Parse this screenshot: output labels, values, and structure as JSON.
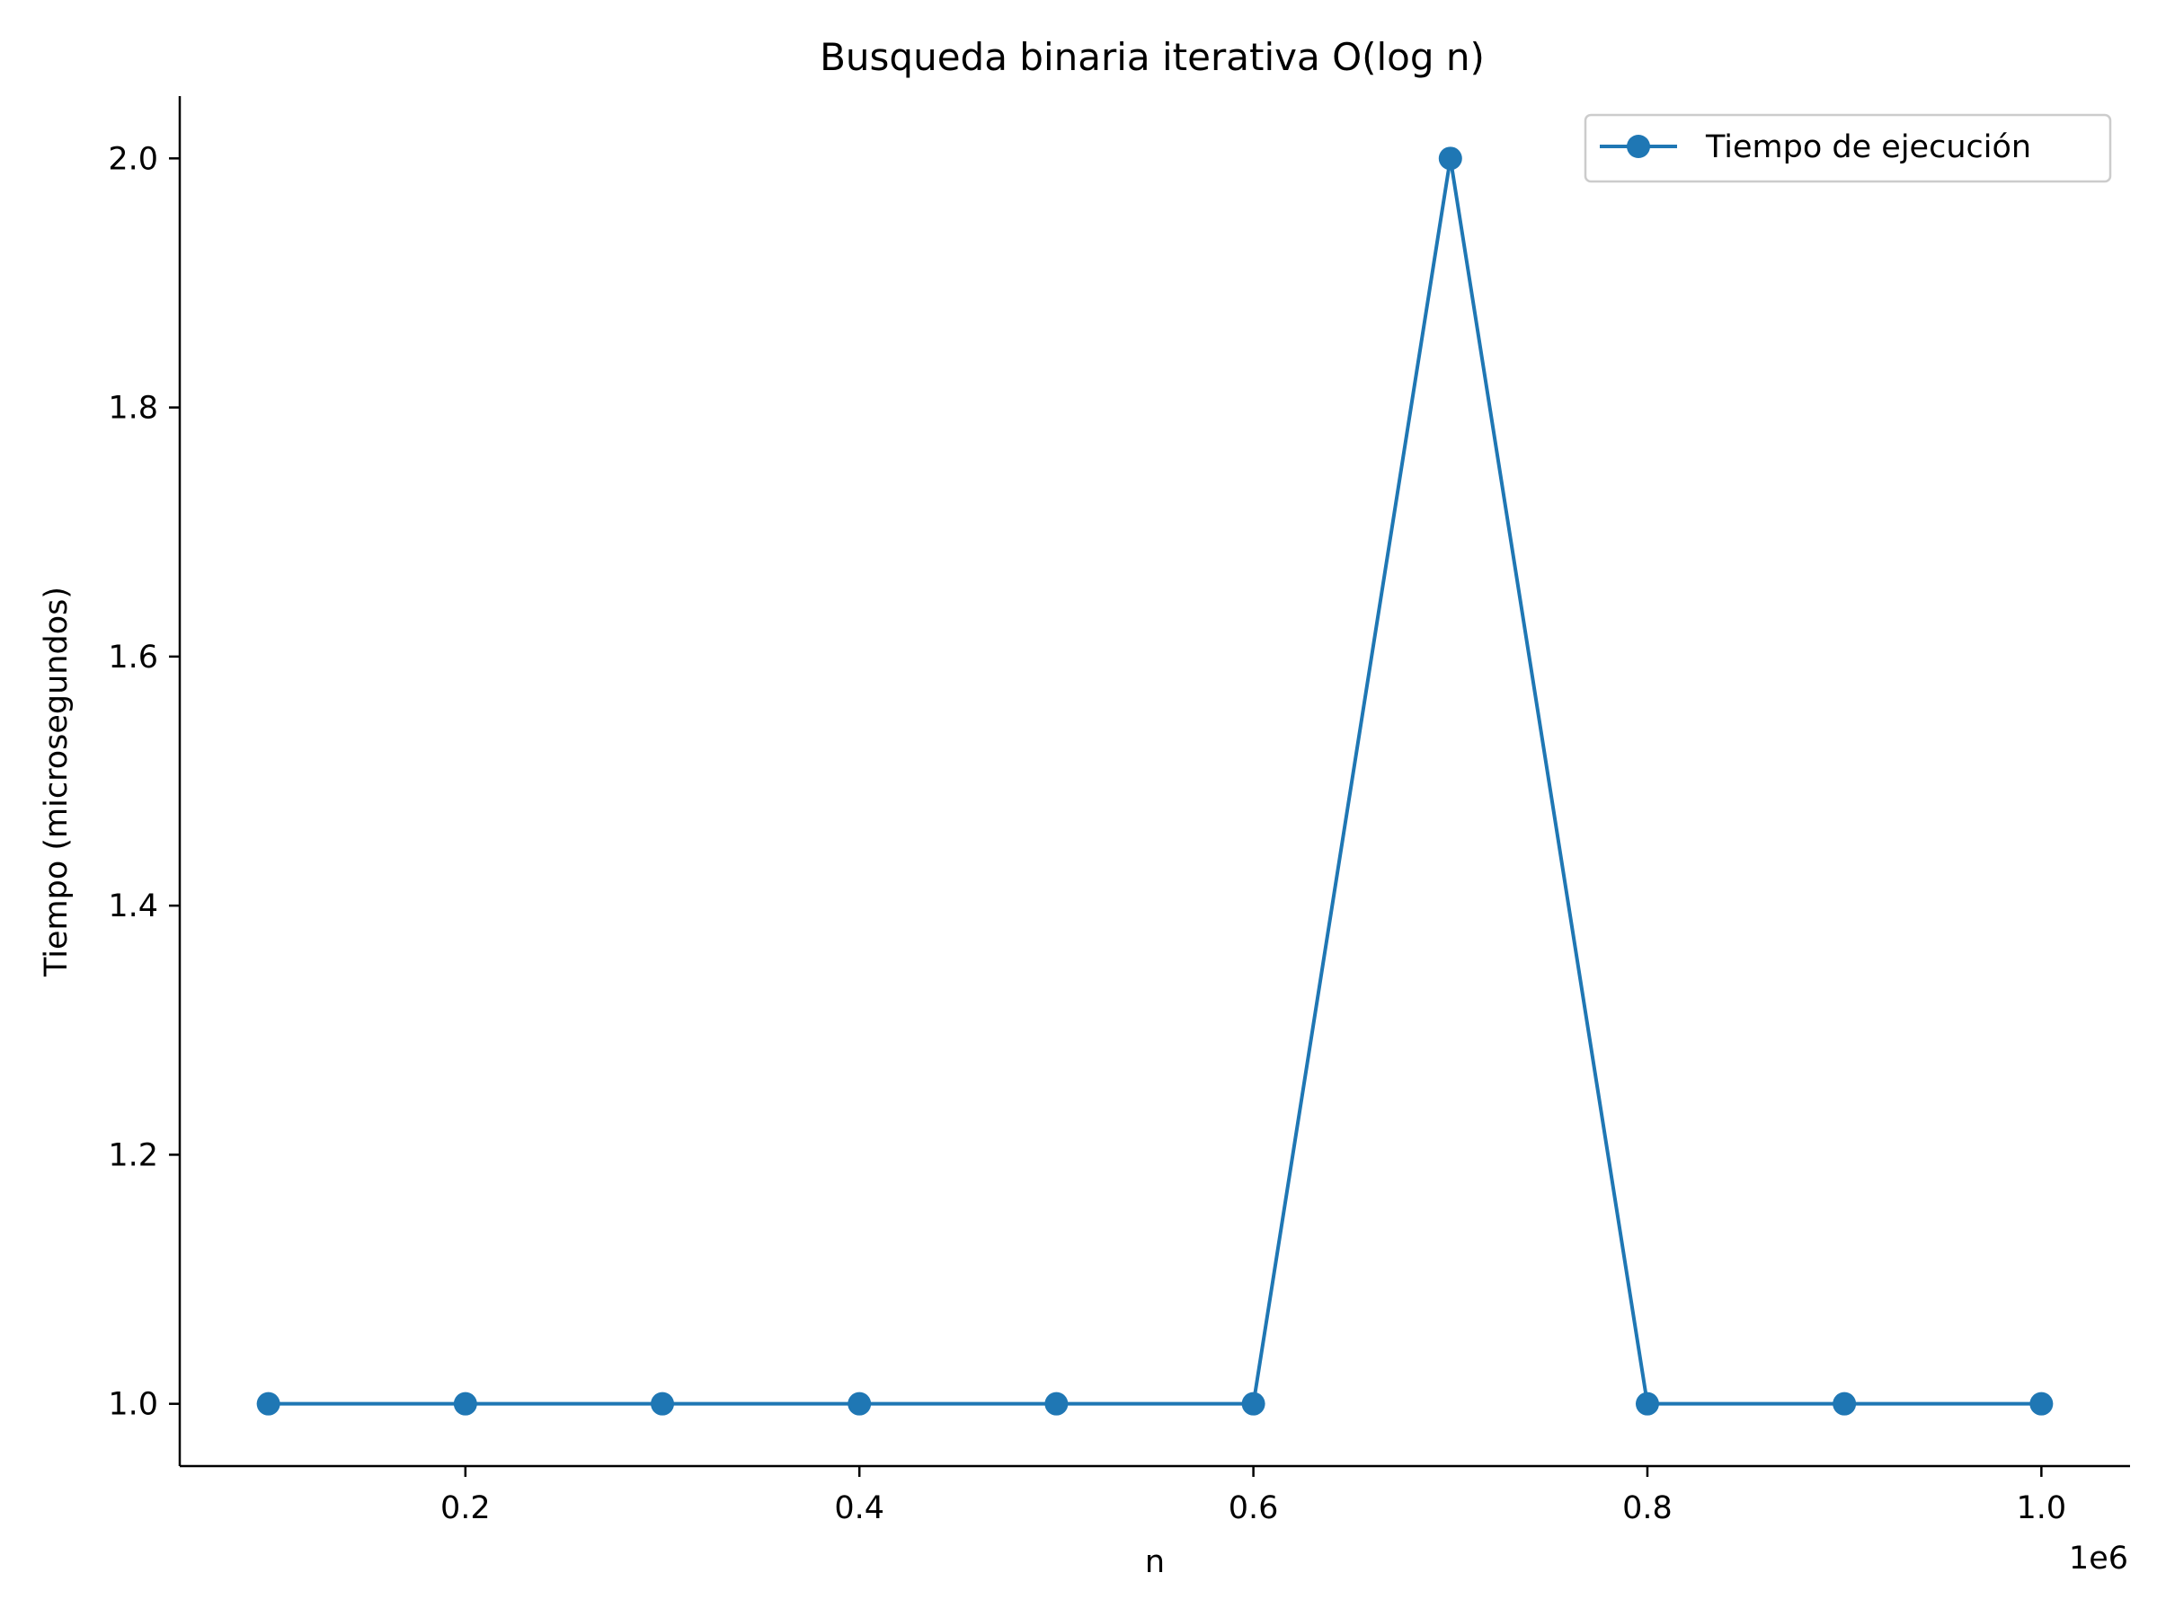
{
  "chart_data": {
    "type": "line",
    "title": "Busqueda binaria iterativa O(log n)",
    "xlabel": "n",
    "ylabel": "Tiempo (microsegundos)",
    "x_offset_label": "1e6",
    "x": [
      100000,
      200000,
      300000,
      400000,
      500000,
      600000,
      700000,
      800000,
      900000,
      1000000
    ],
    "series": [
      {
        "name": "Tiempo de ejecución",
        "color": "#1f77b4",
        "marker": "circle",
        "values": [
          1,
          1,
          1,
          1,
          1,
          1,
          2,
          1,
          1,
          1
        ]
      }
    ],
    "xlim": [
      55000,
      1045000
    ],
    "ylim": [
      0.95,
      2.05
    ],
    "xticks": [
      200000,
      400000,
      600000,
      800000,
      1000000
    ],
    "xtick_labels": [
      "0.2",
      "0.4",
      "0.6",
      "0.8",
      "1.0"
    ],
    "yticks": [
      1.0,
      1.2,
      1.4,
      1.6,
      1.8,
      2.0
    ],
    "ytick_labels": [
      "1.0",
      "1.2",
      "1.4",
      "1.6",
      "1.8",
      "2.0"
    ],
    "grid": false,
    "legend_position": "top-right",
    "spines": "left-bottom"
  }
}
